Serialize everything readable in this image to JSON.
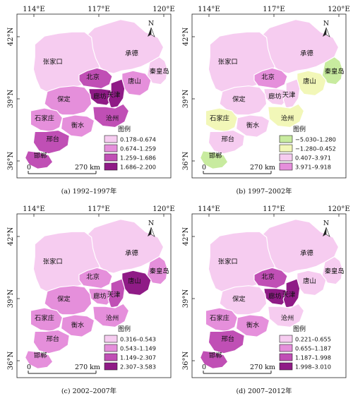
{
  "axis_labels": {
    "lon": [
      "114°E",
      "117°E",
      "120°E"
    ],
    "lat": [
      "42°N",
      "39°N",
      "36°N"
    ]
  },
  "north_label": "N",
  "scale_text": {
    "zero": "0",
    "km": "270 km"
  },
  "legend_title": "图例",
  "cities": {
    "zjk": "张家口",
    "cd": "承德",
    "bj": "北京",
    "ts": "唐山",
    "qhd": "秦皇岛",
    "lf": "廊坊",
    "tj": "天津",
    "bd": "保定",
    "sjz": "石家庄",
    "cz": "沧州",
    "hs": "衡水",
    "xt": "邢台",
    "hd": "邯郸"
  },
  "panels": [
    {
      "caption": "(a) 1992–1997年",
      "legend": [
        {
          "label": "0.178–0.674",
          "color": "#f6ccf0"
        },
        {
          "label": "0.674–1.259",
          "color": "#e58fdb"
        },
        {
          "label": "1.259–1.686",
          "color": "#c04fb5"
        },
        {
          "label": "1.686–2.200",
          "color": "#8f1b86"
        }
      ],
      "city_class": {
        "zjk": 0,
        "cd": 0,
        "bj": 2,
        "ts": 1,
        "qhd": 0,
        "lf": 3,
        "tj": 3,
        "bd": 1,
        "sjz": 1,
        "cz": 2,
        "hs": 1,
        "xt": 2,
        "hd": 2
      }
    },
    {
      "caption": "(b) 1997–2002年",
      "legend": [
        {
          "label": "−5.030–1.280",
          "color": "#c8eb9f"
        },
        {
          "label": "−1.280–0.452",
          "color": "#f2f7b8"
        },
        {
          "label": "0.407–3.971",
          "color": "#f6ccf0"
        },
        {
          "label": "3.971–9.918",
          "color": "#e58fdb"
        }
      ],
      "city_class": {
        "zjk": 2,
        "cd": 2,
        "bj": 3,
        "ts": 1,
        "qhd": 0,
        "lf": 2,
        "tj": 2,
        "bd": 2,
        "sjz": 1,
        "cz": 1,
        "hs": 2,
        "xt": 2,
        "hd": 0
      }
    },
    {
      "caption": "(c) 2002–2007年",
      "legend": [
        {
          "label": "0.316–0.543",
          "color": "#f6ccf0"
        },
        {
          "label": "0.543–1.149",
          "color": "#e58fdb"
        },
        {
          "label": "1.149–2.307",
          "color": "#c04fb5"
        },
        {
          "label": "2.307–3.583",
          "color": "#8f1b86"
        }
      ],
      "city_class": {
        "zjk": 0,
        "cd": 0,
        "bj": 1,
        "ts": 3,
        "qhd": 1,
        "lf": 1,
        "tj": 2,
        "bd": 1,
        "sjz": 1,
        "cz": 1,
        "hs": 1,
        "xt": 1,
        "hd": 1
      }
    },
    {
      "caption": "(d) 2007–2012年",
      "legend": [
        {
          "label": "0.221–0.655",
          "color": "#f6ccf0"
        },
        {
          "label": "0.655–1.187",
          "color": "#e58fdb"
        },
        {
          "label": "1.187–1.998",
          "color": "#c04fb5"
        },
        {
          "label": "1.998–3.010",
          "color": "#8f1b86"
        }
      ],
      "city_class": {
        "zjk": 0,
        "cd": 0,
        "bj": 2,
        "ts": 0,
        "qhd": 0,
        "lf": 3,
        "tj": 3,
        "bd": 0,
        "sjz": 1,
        "cz": 0,
        "hs": 1,
        "xt": 2,
        "hd": 2
      }
    }
  ]
}
